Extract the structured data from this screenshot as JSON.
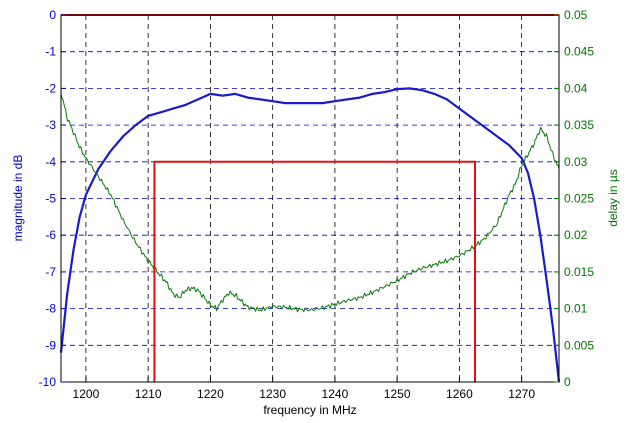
{
  "chart_data": {
    "type": "line",
    "title": "",
    "xlabel": "frequency in MHz",
    "ylabel_left": "magnitude in dB",
    "ylabel_right": "delay in µs",
    "xlim": [
      1196,
      1276
    ],
    "ylim_left": [
      -10,
      0
    ],
    "ylim_right": [
      0,
      0.05
    ],
    "grid": true,
    "x_ticks": [
      1200,
      1210,
      1220,
      1230,
      1240,
      1250,
      1260,
      1270
    ],
    "y_ticks_left": [
      0,
      -1,
      -2,
      -3,
      -4,
      -5,
      -6,
      -7,
      -8,
      -9,
      -10
    ],
    "y_ticks_right": [
      "0.05",
      "0.045",
      "0.04",
      "0.035",
      "0.03",
      "0.025",
      "0.02",
      "0.015",
      "0.01",
      "0.005",
      "0"
    ],
    "colors": {
      "magnitude": "#1a1acc",
      "delay": "#0a7a0a",
      "mask": "#e01010",
      "left_axis": "#0000cc",
      "right_axis": "#007700",
      "grid": "#000000"
    },
    "series": [
      {
        "axis": "left",
        "x": [
          1196,
          1197,
          1198,
          1199,
          1200,
          1202,
          1204,
          1206,
          1208,
          1210,
          1212,
          1214,
          1216,
          1218,
          1220,
          1222,
          1224,
          1226,
          1228,
          1230,
          1232,
          1234,
          1236,
          1238,
          1240,
          1242,
          1244,
          1246,
          1248,
          1250,
          1252,
          1254,
          1256,
          1258,
          1260,
          1262,
          1264,
          1266,
          1268,
          1270,
          1271,
          1272,
          1273,
          1274,
          1275,
          1276
        ],
        "y": [
          -9.2,
          -7.6,
          -6.4,
          -5.5,
          -4.9,
          -4.2,
          -3.7,
          -3.3,
          -3.0,
          -2.75,
          -2.65,
          -2.55,
          -2.45,
          -2.3,
          -2.15,
          -2.2,
          -2.15,
          -2.25,
          -2.3,
          -2.35,
          -2.4,
          -2.4,
          -2.4,
          -2.4,
          -2.35,
          -2.3,
          -2.25,
          -2.15,
          -2.1,
          -2.02,
          -2.0,
          -2.05,
          -2.15,
          -2.3,
          -2.55,
          -2.8,
          -3.05,
          -3.3,
          -3.55,
          -3.9,
          -4.3,
          -5.0,
          -6.0,
          -7.2,
          -8.5,
          -10.0
        ]
      },
      {
        "axis": "right",
        "x": [
          1196,
          1197,
          1198,
          1199,
          1200,
          1202,
          1204,
          1206,
          1208,
          1210,
          1211,
          1212,
          1213,
          1214,
          1215,
          1216,
          1217,
          1218,
          1219,
          1220,
          1221,
          1222,
          1223,
          1224,
          1225,
          1226,
          1228,
          1230,
          1232,
          1234,
          1236,
          1238,
          1240,
          1242,
          1244,
          1246,
          1248,
          1250,
          1252,
          1254,
          1256,
          1258,
          1260,
          1262,
          1264,
          1266,
          1267,
          1268,
          1269,
          1270,
          1271,
          1272,
          1273,
          1274,
          1275,
          1276
        ],
        "y": [
          0.0395,
          0.036,
          0.034,
          0.032,
          0.0305,
          0.028,
          0.0255,
          0.022,
          0.019,
          0.0165,
          0.0155,
          0.0145,
          0.0135,
          0.012,
          0.0115,
          0.0125,
          0.0128,
          0.0125,
          0.0115,
          0.0105,
          0.01,
          0.0112,
          0.0122,
          0.0118,
          0.011,
          0.0102,
          0.0098,
          0.0103,
          0.0102,
          0.0099,
          0.0098,
          0.0101,
          0.0106,
          0.0111,
          0.0115,
          0.0122,
          0.013,
          0.0138,
          0.0148,
          0.0155,
          0.016,
          0.0165,
          0.0172,
          0.0182,
          0.0195,
          0.0215,
          0.0235,
          0.0255,
          0.027,
          0.0295,
          0.031,
          0.0325,
          0.0345,
          0.0335,
          0.031,
          0.029
        ]
      },
      {
        "axis": "left",
        "x": [
          1196,
          1276
        ],
        "y": [
          0,
          0
        ]
      },
      {
        "axis": "left",
        "x": [
          1211,
          1211,
          1262.5,
          1262.5
        ],
        "y": [
          -10,
          -4,
          -4,
          -10
        ]
      }
    ]
  }
}
